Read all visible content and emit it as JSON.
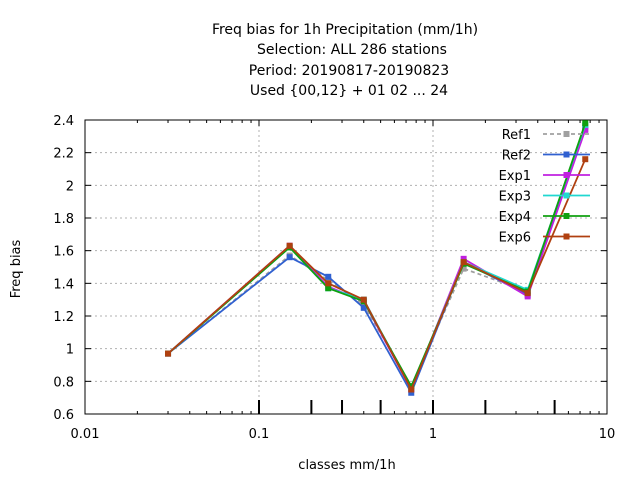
{
  "title_lines": [
    "Freq bias  for 1h Precipitation (mm/1h)",
    "Selection: ALL    286 stations",
    "Period: 20190817-20190823",
    "Used {00,12} + 01 02 ... 24"
  ],
  "chart_data": {
    "type": "line",
    "xlabel": "classes mm/1h",
    "ylabel": "Freq bias",
    "xscale": "log",
    "xlim": [
      0.01,
      10
    ],
    "ylim": [
      0.6,
      2.4
    ],
    "grid": true,
    "legend_position": "top-right",
    "xticks": [
      0.01,
      0.1,
      1,
      10
    ],
    "xtick_labels": [
      "0.01",
      "0.1",
      "1",
      "10"
    ],
    "yticks": [
      0.6,
      0.8,
      1,
      1.2,
      1.4,
      1.6,
      1.8,
      2,
      2.2,
      2.4
    ],
    "ytick_labels": [
      "0.6",
      "0.8",
      "1",
      "1.2",
      "1.4",
      "1.6",
      "1.8",
      "2",
      "2.2",
      "2.4"
    ],
    "class_limits": [
      0.1,
      0.2,
      0.3,
      0.5,
      1,
      2,
      5
    ],
    "x": [
      0.03,
      0.15,
      0.25,
      0.4,
      0.75,
      1.5,
      3.5,
      7.5
    ],
    "series": [
      {
        "name": "Ref1",
        "color": "#a0a0a0",
        "dashed": true,
        "values": [
          0.97,
          1.57,
          1.42,
          1.27,
          0.77,
          1.49,
          1.35,
          2.34
        ]
      },
      {
        "name": "Ref2",
        "color": "#3060d0",
        "dashed": false,
        "values": [
          0.97,
          1.56,
          1.44,
          1.25,
          0.73,
          1.53,
          1.33,
          2.36
        ]
      },
      {
        "name": "Exp1",
        "color": "#c020e0",
        "dashed": false,
        "values": [
          0.97,
          1.63,
          1.38,
          1.29,
          0.75,
          1.55,
          1.32,
          2.34
        ]
      },
      {
        "name": "Exp3",
        "color": "#20d8d0",
        "dashed": false,
        "values": [
          0.97,
          1.62,
          1.37,
          1.3,
          0.76,
          1.53,
          1.36,
          2.37
        ]
      },
      {
        "name": "Exp4",
        "color": "#10a010",
        "dashed": false,
        "values": [
          0.97,
          1.62,
          1.37,
          1.29,
          0.77,
          1.52,
          1.35,
          2.38
        ]
      },
      {
        "name": "Exp6",
        "color": "#b04010",
        "dashed": false,
        "values": [
          0.97,
          1.63,
          1.4,
          1.3,
          0.75,
          1.53,
          1.34,
          2.16
        ]
      }
    ]
  }
}
